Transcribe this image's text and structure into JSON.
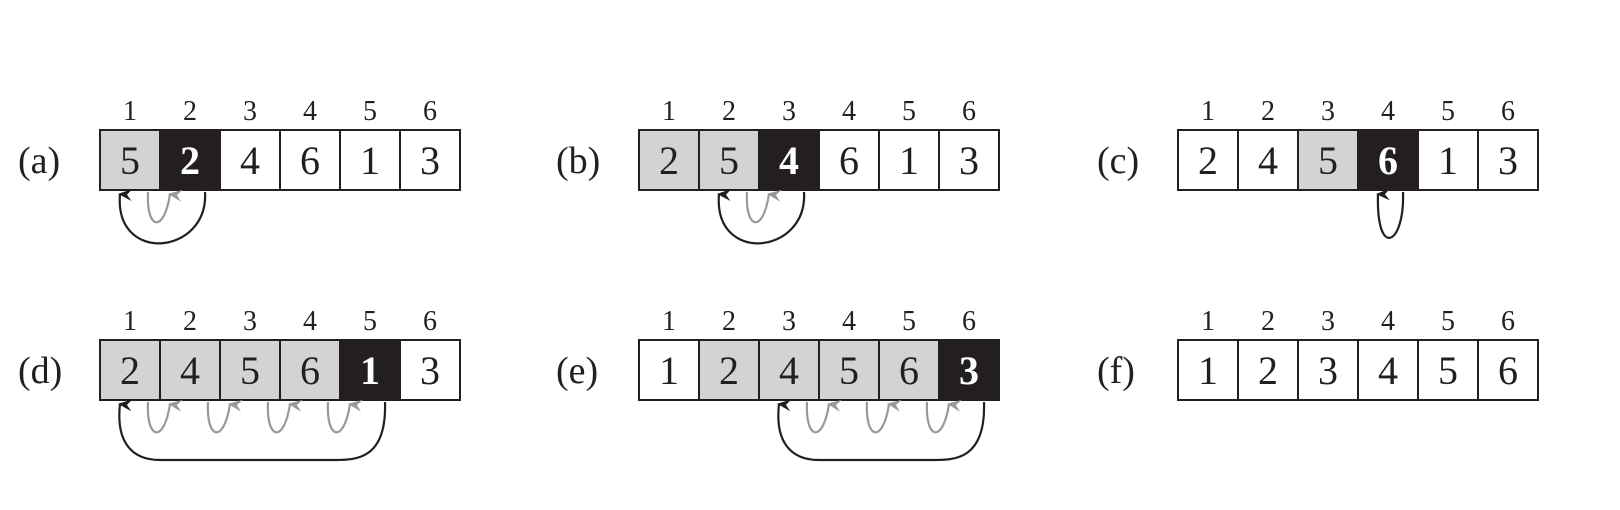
{
  "colors": {
    "sorted_fill": "#d3d3d3",
    "key_fill": "#231f20",
    "unsorted_fill": "#ffffff",
    "border": "#231f20",
    "text": "#231f20",
    "key_text": "#ffffff",
    "insert_arrow": "#231f20",
    "shift_arrow": "#999999"
  },
  "indices": [
    "1",
    "2",
    "3",
    "4",
    "5",
    "6"
  ],
  "panels": [
    {
      "label": "(a)",
      "values": [
        "5",
        "2",
        "4",
        "6",
        "1",
        "3"
      ],
      "states": [
        "sorted",
        "key",
        "plain",
        "plain",
        "plain",
        "plain"
      ],
      "shift_arrows": [
        [
          0,
          1
        ]
      ],
      "insert_arrow": [
        1,
        0
      ]
    },
    {
      "label": "(b)",
      "values": [
        "2",
        "5",
        "4",
        "6",
        "1",
        "3"
      ],
      "states": [
        "sorted",
        "sorted",
        "key",
        "plain",
        "plain",
        "plain"
      ],
      "shift_arrows": [
        [
          1,
          2
        ]
      ],
      "insert_arrow": [
        2,
        1
      ]
    },
    {
      "label": "(c)",
      "values": [
        "2",
        "4",
        "5",
        "6",
        "1",
        "3"
      ],
      "states": [
        "plain",
        "plain",
        "sorted",
        "key",
        "plain",
        "plain"
      ],
      "shift_arrows": [],
      "insert_arrow": [
        3,
        3
      ]
    },
    {
      "label": "(d)",
      "values": [
        "2",
        "4",
        "5",
        "6",
        "1",
        "3"
      ],
      "states": [
        "sorted",
        "sorted",
        "sorted",
        "sorted",
        "key",
        "plain"
      ],
      "shift_arrows": [
        [
          0,
          1
        ],
        [
          1,
          2
        ],
        [
          2,
          3
        ],
        [
          3,
          4
        ]
      ],
      "insert_arrow": [
        4,
        0
      ]
    },
    {
      "label": "(e)",
      "values": [
        "1",
        "2",
        "4",
        "5",
        "6",
        "3"
      ],
      "states": [
        "plain",
        "sorted",
        "sorted",
        "sorted",
        "sorted",
        "key"
      ],
      "shift_arrows": [
        [
          2,
          3
        ],
        [
          3,
          4
        ],
        [
          4,
          5
        ]
      ],
      "insert_arrow": [
        5,
        2
      ]
    },
    {
      "label": "(f)",
      "values": [
        "1",
        "2",
        "3",
        "4",
        "5",
        "6"
      ],
      "states": [
        "plain",
        "plain",
        "plain",
        "plain",
        "plain",
        "plain"
      ],
      "shift_arrows": [],
      "insert_arrow": null
    }
  ]
}
